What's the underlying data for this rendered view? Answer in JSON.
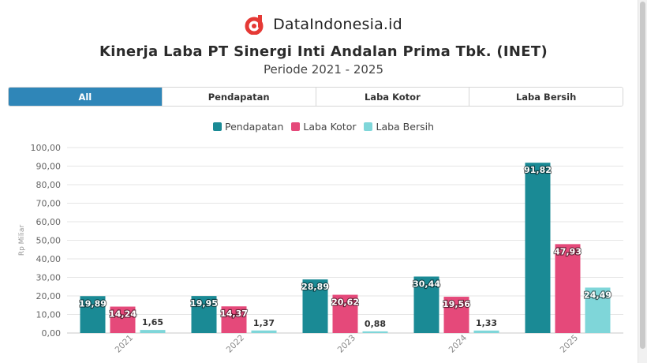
{
  "brand": {
    "name": "DataIndonesia.id",
    "logo_icon": "datain-logo-icon",
    "logo_color": "#e53935"
  },
  "header": {
    "title": "Kinerja Laba PT Sinergi Inti Andalan Prima Tbk. (INET)",
    "subtitle": "Periode 2021 - 2025"
  },
  "tabs": [
    {
      "label": "All",
      "active": true
    },
    {
      "label": "Pendapatan",
      "active": false
    },
    {
      "label": "Laba Kotor",
      "active": false
    },
    {
      "label": "Laba Bersih",
      "active": false
    }
  ],
  "chart_data": {
    "type": "bar",
    "title": "Kinerja Laba PT Sinergi Inti Andalan Prima Tbk. (INET)",
    "xlabel": "",
    "ylabel": "Rp Miliar",
    "ylim": [
      0,
      100
    ],
    "yticks": [
      "0,00",
      "10,00",
      "20,00",
      "30,00",
      "40,00",
      "50,00",
      "60,00",
      "70,00",
      "80,00",
      "90,00",
      "100,00"
    ],
    "categories": [
      "2021",
      "2022",
      "2023",
      "2024",
      "2025"
    ],
    "legend_position": "top-center",
    "grid": true,
    "series": [
      {
        "name": "Pendapatan",
        "color": "#1a8a95",
        "values": [
          19.89,
          19.95,
          28.89,
          30.44,
          91.82
        ],
        "labels": [
          "19,89",
          "19,95",
          "28,89",
          "30,44",
          "91,82"
        ]
      },
      {
        "name": "Laba Kotor",
        "color": "#e5497a",
        "values": [
          14.24,
          14.37,
          20.62,
          19.56,
          47.93
        ],
        "labels": [
          "14,24",
          "14,37",
          "20,62",
          "19,56",
          "47,93"
        ]
      },
      {
        "name": "Laba Bersih",
        "color": "#7fd6d9",
        "values": [
          1.65,
          1.37,
          0.88,
          1.33,
          24.49
        ],
        "labels": [
          "1,65",
          "1,37",
          "0,88",
          "1,33",
          "24,49"
        ]
      }
    ]
  }
}
